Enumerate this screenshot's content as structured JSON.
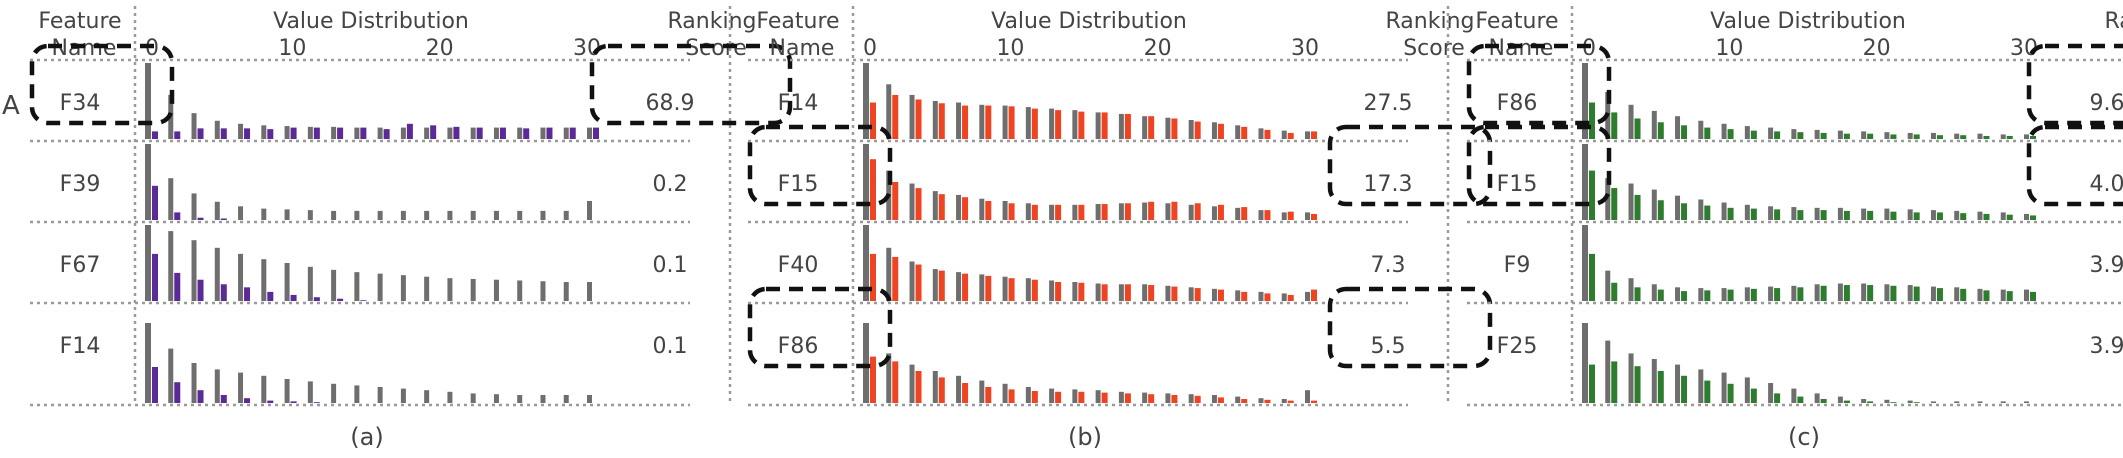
{
  "figure": {
    "row_marker": "A",
    "header": {
      "feature_line1": "Feature",
      "feature_line2": "Name",
      "value_title": "Value Distribution",
      "score_line1": "Ranking",
      "score_line2": "Score"
    },
    "ticks": [
      "0",
      "10",
      "20",
      "30"
    ],
    "gray_color": "#6e6e6e"
  },
  "chart_data": [
    {
      "type": "bar",
      "subplot_label": "(a)",
      "accent_color": "#5b2a96",
      "x_ticks": [
        0,
        10,
        20,
        30
      ],
      "xlim": [
        0,
        30
      ],
      "rows": [
        {
          "feature": "F34",
          "score": "68.9",
          "highlighted": true,
          "gray": [
            1.0,
            0.58,
            0.34,
            0.24,
            0.2,
            0.18,
            0.17,
            0.16,
            0.16,
            0.15,
            0.15,
            0.15,
            0.15,
            0.15,
            0.15,
            0.15,
            0.15,
            0.15,
            0.15,
            0.15
          ],
          "series": [
            0.1,
            0.1,
            0.14,
            0.14,
            0.14,
            0.13,
            0.15,
            0.15,
            0.15,
            0.15,
            0.13,
            0.2,
            0.18,
            0.16,
            0.15,
            0.15,
            0.14,
            0.15,
            0.15,
            0.15
          ]
        },
        {
          "feature": "F39",
          "score": "0.2",
          "highlighted": false,
          "gray": [
            1.0,
            0.55,
            0.35,
            0.24,
            0.18,
            0.15,
            0.14,
            0.13,
            0.12,
            0.12,
            0.12,
            0.12,
            0.12,
            0.12,
            0.12,
            0.12,
            0.12,
            0.12,
            0.12,
            0.25
          ],
          "series": [
            0.45,
            0.1,
            0.03,
            0.02,
            0,
            0,
            0,
            0,
            0,
            0,
            0,
            0,
            0,
            0,
            0,
            0,
            0,
            0,
            0,
            0
          ]
        },
        {
          "feature": "F67",
          "score": "0.1",
          "highlighted": false,
          "gray": [
            1.0,
            0.92,
            0.8,
            0.7,
            0.62,
            0.55,
            0.5,
            0.45,
            0.41,
            0.38,
            0.36,
            0.34,
            0.32,
            0.3,
            0.29,
            0.28,
            0.27,
            0.26,
            0.25,
            0.25
          ],
          "series": [
            0.62,
            0.37,
            0.28,
            0.22,
            0.18,
            0.12,
            0.08,
            0.05,
            0.03,
            0.01,
            0,
            0,
            0,
            0,
            0,
            0,
            0,
            0,
            0,
            0
          ]
        },
        {
          "feature": "F14",
          "score": "0.1",
          "highlighted": false,
          "gray": [
            1.0,
            0.68,
            0.5,
            0.42,
            0.38,
            0.34,
            0.3,
            0.27,
            0.24,
            0.22,
            0.2,
            0.18,
            0.16,
            0.14,
            0.12,
            0.11,
            0.1,
            0.1,
            0.1,
            0.1
          ],
          "series": [
            0.45,
            0.26,
            0.16,
            0.1,
            0.06,
            0.03,
            0.02,
            0.01,
            0,
            0,
            0,
            0,
            0,
            0,
            0,
            0,
            0,
            0,
            0,
            0
          ]
        }
      ]
    },
    {
      "type": "bar",
      "subplot_label": "(b)",
      "accent_color": "#ee4422",
      "x_ticks": [
        0,
        10,
        20,
        30
      ],
      "xlim": [
        0,
        30
      ],
      "rows": [
        {
          "feature": "F14",
          "score": "27.5",
          "highlighted": false,
          "gray": [
            1.0,
            0.72,
            0.58,
            0.5,
            0.48,
            0.45,
            0.44,
            0.42,
            0.4,
            0.38,
            0.35,
            0.33,
            0.3,
            0.28,
            0.25,
            0.22,
            0.18,
            0.14,
            0.11,
            0.1
          ],
          "series": [
            0.48,
            0.58,
            0.52,
            0.47,
            0.44,
            0.44,
            0.43,
            0.4,
            0.38,
            0.36,
            0.35,
            0.33,
            0.3,
            0.27,
            0.23,
            0.2,
            0.16,
            0.12,
            0.08,
            0.1
          ]
        },
        {
          "feature": "F15",
          "score": "17.3",
          "highlighted": true,
          "gray": [
            1.0,
            0.65,
            0.48,
            0.38,
            0.33,
            0.28,
            0.25,
            0.22,
            0.2,
            0.2,
            0.21,
            0.22,
            0.23,
            0.22,
            0.2,
            0.18,
            0.16,
            0.13,
            0.1,
            0.1
          ],
          "series": [
            0.8,
            0.5,
            0.42,
            0.34,
            0.3,
            0.25,
            0.22,
            0.2,
            0.2,
            0.2,
            0.21,
            0.22,
            0.24,
            0.24,
            0.22,
            0.2,
            0.17,
            0.13,
            0.11,
            0.08
          ]
        },
        {
          "feature": "F40",
          "score": "7.3",
          "highlighted": false,
          "gray": [
            1.0,
            0.7,
            0.52,
            0.42,
            0.38,
            0.35,
            0.32,
            0.3,
            0.27,
            0.25,
            0.23,
            0.22,
            0.22,
            0.2,
            0.18,
            0.16,
            0.14,
            0.12,
            0.1,
            0.12
          ],
          "series": [
            0.62,
            0.58,
            0.48,
            0.4,
            0.36,
            0.33,
            0.3,
            0.28,
            0.25,
            0.24,
            0.22,
            0.22,
            0.21,
            0.19,
            0.17,
            0.15,
            0.12,
            0.1,
            0.08,
            0.15
          ]
        },
        {
          "feature": "F86",
          "score": "5.5",
          "highlighted": true,
          "gray": [
            1.0,
            0.62,
            0.48,
            0.4,
            0.34,
            0.28,
            0.24,
            0.2,
            0.18,
            0.17,
            0.16,
            0.14,
            0.13,
            0.12,
            0.11,
            0.1,
            0.08,
            0.06,
            0.05,
            0.16
          ],
          "series": [
            0.58,
            0.52,
            0.4,
            0.32,
            0.25,
            0.2,
            0.17,
            0.15,
            0.14,
            0.14,
            0.13,
            0.12,
            0.11,
            0.1,
            0.09,
            0.07,
            0.05,
            0.04,
            0.03,
            0.03
          ]
        }
      ]
    },
    {
      "type": "bar",
      "subplot_label": "(c)",
      "accent_color": "#2e7d2e",
      "x_ticks": [
        0,
        10,
        20,
        30
      ],
      "xlim": [
        0,
        30
      ],
      "rows": [
        {
          "feature": "F86",
          "score": "9.6",
          "highlighted": true,
          "gray": [
            1.0,
            0.62,
            0.45,
            0.37,
            0.3,
            0.24,
            0.2,
            0.17,
            0.15,
            0.13,
            0.12,
            0.11,
            0.1,
            0.09,
            0.08,
            0.08,
            0.07,
            0.07,
            0.06,
            0.06
          ],
          "series": [
            0.48,
            0.35,
            0.27,
            0.22,
            0.18,
            0.15,
            0.13,
            0.11,
            0.1,
            0.09,
            0.08,
            0.07,
            0.07,
            0.06,
            0.06,
            0.05,
            0.05,
            0.04,
            0.04,
            0.04
          ]
        },
        {
          "feature": "F15",
          "score": "4.0",
          "highlighted": true,
          "gray": [
            1.0,
            0.55,
            0.48,
            0.4,
            0.32,
            0.27,
            0.23,
            0.2,
            0.18,
            0.17,
            0.16,
            0.16,
            0.15,
            0.15,
            0.14,
            0.13,
            0.12,
            0.11,
            0.1,
            0.08
          ],
          "series": [
            0.65,
            0.42,
            0.33,
            0.26,
            0.22,
            0.19,
            0.16,
            0.15,
            0.14,
            0.13,
            0.13,
            0.12,
            0.12,
            0.11,
            0.1,
            0.1,
            0.09,
            0.08,
            0.07,
            0.06
          ]
        },
        {
          "feature": "F9",
          "score": "3.9",
          "highlighted": false,
          "gray": [
            1.0,
            0.4,
            0.3,
            0.22,
            0.18,
            0.17,
            0.17,
            0.18,
            0.19,
            0.2,
            0.22,
            0.23,
            0.23,
            0.22,
            0.21,
            0.19,
            0.18,
            0.16,
            0.15,
            0.15
          ],
          "series": [
            0.62,
            0.24,
            0.18,
            0.15,
            0.13,
            0.14,
            0.15,
            0.16,
            0.17,
            0.18,
            0.2,
            0.21,
            0.21,
            0.2,
            0.19,
            0.17,
            0.16,
            0.14,
            0.13,
            0.12
          ]
        },
        {
          "feature": "F25",
          "score": "3.9",
          "highlighted": false,
          "gray": [
            1.0,
            0.78,
            0.62,
            0.55,
            0.48,
            0.42,
            0.38,
            0.32,
            0.25,
            0.18,
            0.12,
            0.08,
            0.05,
            0.04,
            0.03,
            0.02,
            0.02,
            0.02,
            0.02,
            0.02
          ],
          "series": [
            0.48,
            0.52,
            0.46,
            0.4,
            0.34,
            0.28,
            0.24,
            0.18,
            0.12,
            0.08,
            0.05,
            0.03,
            0.02,
            0.01,
            0.01,
            0,
            0,
            0,
            0,
            0
          ]
        }
      ]
    }
  ]
}
